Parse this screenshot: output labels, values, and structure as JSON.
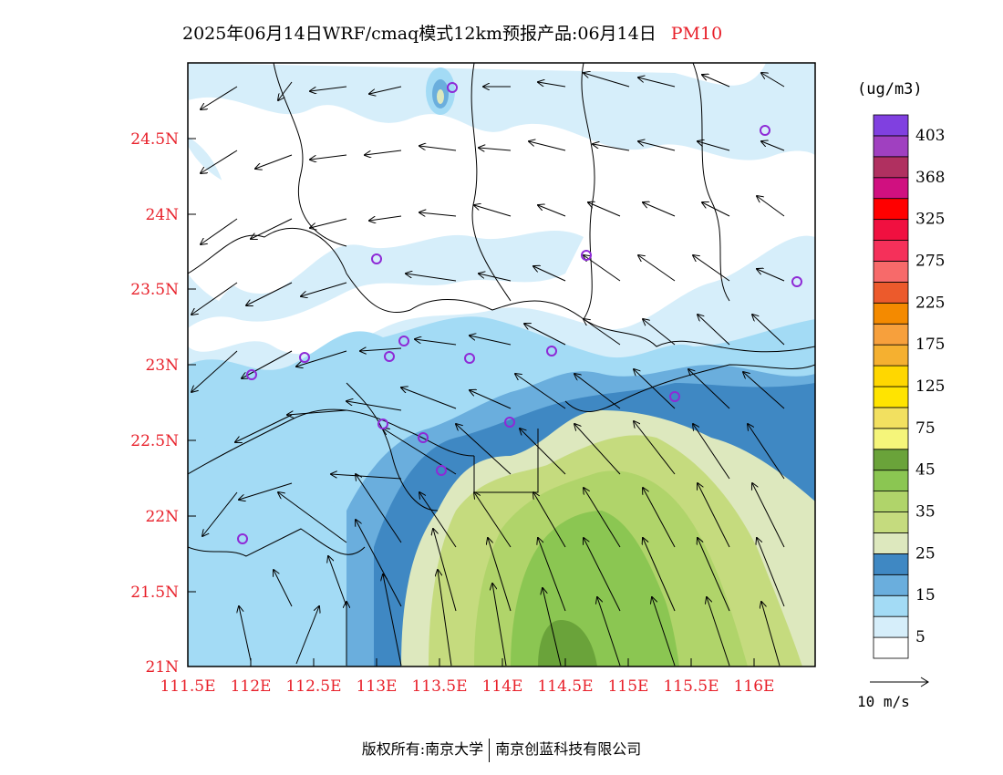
{
  "title": {
    "main": "2025年06月14日WRF/cmaq模式12km预报产品:06月14日",
    "variable": "PM10"
  },
  "map": {
    "x_ticks": [
      "111.5E",
      "112E",
      "112.5E",
      "113E",
      "113.5E",
      "114E",
      "114.5E",
      "115E",
      "115.5E",
      "116E"
    ],
    "y_ticks": [
      "21N",
      "21.5N",
      "22N",
      "22.5N",
      "23N",
      "23.5N",
      "24N",
      "24.5N"
    ],
    "accent_color": "#e8202a"
  },
  "legend": {
    "unit": "(ug/m3)",
    "labels": [
      "5",
      "15",
      "25",
      "35",
      "45",
      "75",
      "125",
      "175",
      "225",
      "275",
      "325",
      "368",
      "403"
    ],
    "colors": [
      "#ffffff",
      "#d6eefa",
      "#a3dbf5",
      "#6aaedd",
      "#3f88c3",
      "#dde8be",
      "#c5db7e",
      "#b0d46a",
      "#8bc652",
      "#6aa33a",
      "#f5f57a",
      "#f2e060",
      "#ffe400",
      "#ffd700",
      "#f5b030",
      "#f7a03c",
      "#f48a00",
      "#ec5a2c",
      "#f76a6a",
      "#f5305a",
      "#f01040",
      "#ff0000",
      "#d01080",
      "#b03060",
      "#a040c0",
      "#8040e0"
    ]
  },
  "wind_key": {
    "label": "10 m/s"
  },
  "footer": {
    "left": "版权所有:南京大学",
    "right": "南京创蓝科技有限公司"
  }
}
